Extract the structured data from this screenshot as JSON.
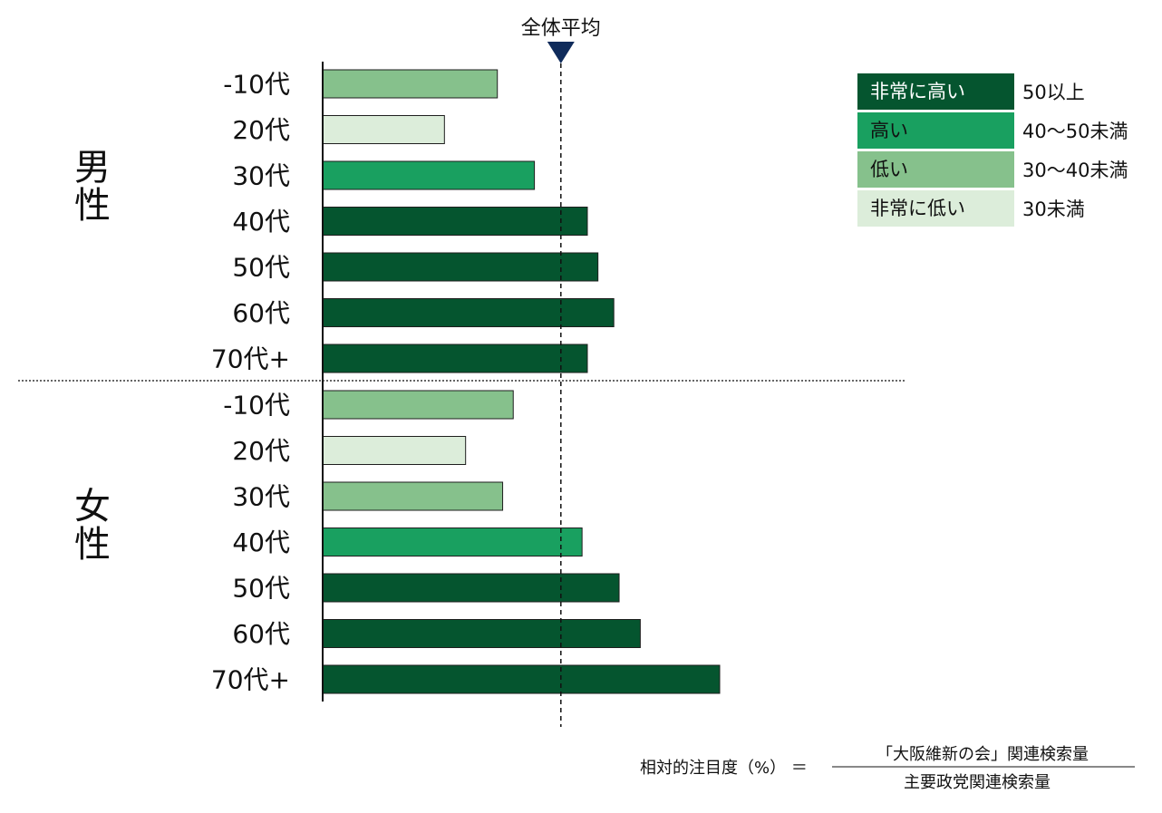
{
  "chart_data": {
    "type": "bar",
    "orientation": "horizontal",
    "xlim": [
      0,
      100
    ],
    "groups": [
      {
        "name": "男性",
        "categories": [
          "-10代",
          "20代",
          "30代",
          "40代",
          "50代",
          "60代",
          "70代+"
        ],
        "values": [
          33,
          23,
          40,
          50,
          52,
          55,
          50
        ]
      },
      {
        "name": "女性",
        "categories": [
          "-10代",
          "20代",
          "30代",
          "40代",
          "50代",
          "60代",
          "70代+"
        ],
        "values": [
          36,
          27,
          34,
          49,
          56,
          60,
          75
        ]
      }
    ],
    "average_label": "全体平均",
    "average_value": 45,
    "legend": [
      {
        "label": "非常に高い",
        "range": "50以上",
        "color": "#05552F",
        "text_color": "#ffffff"
      },
      {
        "label": "高い",
        "range": "40〜50未満",
        "color": "#19A060",
        "text_color": "#111111"
      },
      {
        "label": "低い",
        "range": "30〜40未満",
        "color": "#86C18C",
        "text_color": "#111111"
      },
      {
        "label": "非常に低い",
        "range": "30未満",
        "color": "#DCEDDA",
        "text_color": "#111111"
      }
    ],
    "formula": {
      "lhs": "相対的注目度（%） ＝",
      "numerator": "「大阪維新の会」関連検索量",
      "denominator": "主要政党関連検索量"
    }
  }
}
